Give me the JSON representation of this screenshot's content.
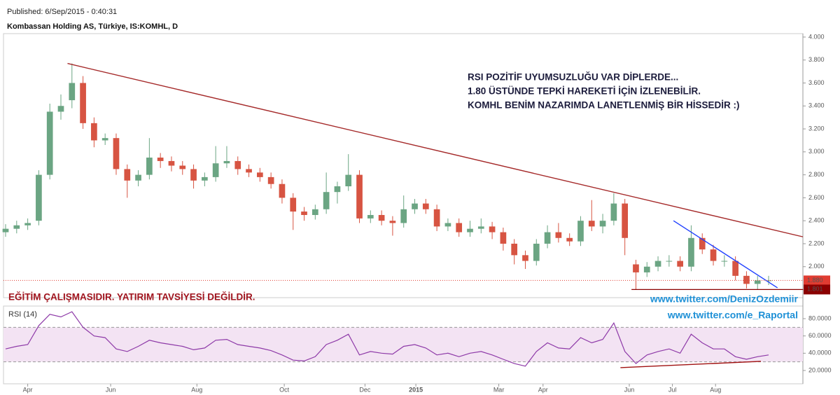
{
  "chart_data": [
    {
      "type": "candlestick",
      "title": "Kombassan Holding AS, Türkiye, IS:KOMHL, D",
      "subtitle": "Published: 6/Sep/2015 - 0:40:31",
      "xlim": [
        -0.19,
        72.1
      ],
      "xticks": [
        {
          "value": 2.0,
          "label": "Apr"
        },
        {
          "value": 9.5,
          "label": "Jun"
        },
        {
          "value": 17.3,
          "label": "Aug"
        },
        {
          "value": 25.2,
          "label": "Oct"
        },
        {
          "value": 32.5,
          "label": "Dec"
        },
        {
          "value": 37.1,
          "label": "2015"
        },
        {
          "value": 44.6,
          "label": "Mar"
        },
        {
          "value": 48.6,
          "label": "Apr"
        },
        {
          "value": 56.4,
          "label": "Jun"
        },
        {
          "value": 60.3,
          "label": "Jul"
        },
        {
          "value": 64.2,
          "label": "Aug"
        }
      ],
      "ylim": [
        1.73,
        4.03
      ],
      "yticks": [
        {
          "value": 1.8,
          "label": "1.800"
        },
        {
          "value": 2.0,
          "label": "2.000"
        },
        {
          "value": 2.2,
          "label": "2.200"
        },
        {
          "value": 2.4,
          "label": "2.400"
        },
        {
          "value": 2.6,
          "label": "2.600"
        },
        {
          "value": 2.8,
          "label": "2.800"
        },
        {
          "value": 3.0,
          "label": "3.000"
        },
        {
          "value": 3.2,
          "label": "3.200"
        },
        {
          "value": 3.4,
          "label": "3.400"
        },
        {
          "value": 3.6,
          "label": "3.600"
        },
        {
          "value": 3.8,
          "label": "3.800"
        },
        {
          "value": 4.0,
          "label": "4.000"
        }
      ],
      "open": [
        2.3,
        2.33,
        2.36,
        2.4,
        2.8,
        3.35,
        3.45,
        3.6,
        3.25,
        3.1,
        3.12,
        2.85,
        2.75,
        2.8,
        2.95,
        2.92,
        2.88,
        2.85,
        2.75,
        2.78,
        2.9,
        2.92,
        2.85,
        2.82,
        2.78,
        2.72,
        2.6,
        2.48,
        2.45,
        2.5,
        2.65,
        2.7,
        2.8,
        2.42,
        2.45,
        2.4,
        2.38,
        2.5,
        2.55,
        2.5,
        2.35,
        2.38,
        2.3,
        2.33,
        2.35,
        2.3,
        2.2,
        2.1,
        2.05,
        2.2,
        2.3,
        2.25,
        2.22,
        2.4,
        2.35,
        2.4,
        2.55,
        2.02,
        1.95,
        2.0,
        2.05,
        2.05,
        2.0,
        2.25,
        2.15,
        2.05,
        2.05,
        1.92,
        1.85,
        1.88
      ],
      "high": [
        2.37,
        2.4,
        2.42,
        2.84,
        3.42,
        3.5,
        3.77,
        3.66,
        3.3,
        3.16,
        3.16,
        2.89,
        2.84,
        3.12,
        2.99,
        2.96,
        2.92,
        2.89,
        2.82,
        3.05,
        3.05,
        2.96,
        2.89,
        2.86,
        2.82,
        2.76,
        2.64,
        2.52,
        2.54,
        2.82,
        2.74,
        2.98,
        2.84,
        2.49,
        2.49,
        2.44,
        2.62,
        2.59,
        2.59,
        2.54,
        2.42,
        2.42,
        2.4,
        2.42,
        2.39,
        2.34,
        2.24,
        2.14,
        2.24,
        2.36,
        2.38,
        2.29,
        2.44,
        2.58,
        2.46,
        2.64,
        2.59,
        2.06,
        2.04,
        2.09,
        2.1,
        2.09,
        2.36,
        2.29,
        2.19,
        2.1,
        2.09,
        1.96,
        1.92,
        1.92
      ],
      "low": [
        2.26,
        2.29,
        2.32,
        2.36,
        2.76,
        3.28,
        3.38,
        3.2,
        3.04,
        3.06,
        2.8,
        2.6,
        2.7,
        2.76,
        2.86,
        2.83,
        2.8,
        2.68,
        2.7,
        2.74,
        2.86,
        2.8,
        2.78,
        2.74,
        2.68,
        2.55,
        2.32,
        2.4,
        2.41,
        2.46,
        2.55,
        2.66,
        2.38,
        2.38,
        2.36,
        2.27,
        2.34,
        2.46,
        2.46,
        2.31,
        2.31,
        2.26,
        2.26,
        2.29,
        2.24,
        2.14,
        2.02,
        1.98,
        2.01,
        2.16,
        2.21,
        2.18,
        2.18,
        2.31,
        2.29,
        2.36,
        2.1,
        1.8,
        1.91,
        1.96,
        2.0,
        1.96,
        1.96,
        2.11,
        2.01,
        2.0,
        1.88,
        1.81,
        1.8,
        1.84
      ],
      "close": [
        2.33,
        2.36,
        2.38,
        2.8,
        3.35,
        3.4,
        3.6,
        3.25,
        3.1,
        3.12,
        2.85,
        2.75,
        2.8,
        2.95,
        2.92,
        2.88,
        2.85,
        2.75,
        2.78,
        2.9,
        2.92,
        2.85,
        2.82,
        2.78,
        2.72,
        2.6,
        2.48,
        2.45,
        2.5,
        2.65,
        2.7,
        2.8,
        2.42,
        2.45,
        2.4,
        2.38,
        2.5,
        2.55,
        2.5,
        2.35,
        2.38,
        2.3,
        2.33,
        2.35,
        2.3,
        2.2,
        2.1,
        2.05,
        2.2,
        2.3,
        2.25,
        2.22,
        2.4,
        2.35,
        2.4,
        2.55,
        2.25,
        1.95,
        2.0,
        2.05,
        2.05,
        2.0,
        2.25,
        2.15,
        2.05,
        2.05,
        1.92,
        1.85,
        1.88,
        1.88
      ],
      "up_color": "#6ba583",
      "down_color": "#d75442",
      "last_price": {
        "value": 1.88,
        "label": "1.880",
        "color": "#e03c31"
      },
      "support": {
        "value": 1.801,
        "label": "1.801",
        "color": "#8b0000",
        "from": 56.6
      },
      "trendlines": [
        {
          "x": [
            5.6,
            72.1
          ],
          "y": [
            3.77,
            2.26
          ],
          "color": "#a52a2a"
        },
        {
          "x": [
            60.4,
            69.8
          ],
          "y": [
            2.4,
            1.816
          ],
          "color": "#2040ff"
        }
      ],
      "annotations": [
        "RSI POZİTİF UYUMSUZLUĞU VAR DİPLERDE...",
        "1.80 ÜSTÜNDE TEPKİ HAREKETİ İÇİN İZLENEBİLİR.",
        "KOMHL BENİM NAZARIMDA LANETLENMİŞ BİR HİSSEDİR :)",
        "EĞİTİM ÇALIŞMASIDIR. YATIRIM TAVSİYESİ DEĞİLDİR.",
        "www.twitter.com/DenizOzdemiir",
        "www.twitter.com/e_Raportal"
      ]
    },
    {
      "type": "line",
      "title": "RSI (14)",
      "xlim": [
        -0.19,
        72.1
      ],
      "ylim": [
        4.6,
        94.6
      ],
      "yticks": [
        {
          "value": 20,
          "label": "20.0000"
        },
        {
          "value": 40,
          "label": "40.0000"
        },
        {
          "value": 60,
          "label": "60.0000"
        },
        {
          "value": 80,
          "label": "80.0000"
        }
      ],
      "band": [
        30,
        70
      ],
      "band_color": "#f3e3f3",
      "color": "#8e3aa8",
      "values": [
        45,
        48,
        50,
        72,
        85,
        82,
        88,
        70,
        60,
        58,
        45,
        42,
        48,
        55,
        52,
        50,
        48,
        44,
        46,
        55,
        56,
        50,
        48,
        46,
        43,
        38,
        32,
        31,
        36,
        50,
        55,
        62,
        38,
        42,
        40,
        39,
        48,
        50,
        46,
        38,
        40,
        36,
        40,
        42,
        38,
        33,
        28,
        25,
        42,
        52,
        46,
        45,
        58,
        52,
        56,
        75,
        42,
        28,
        38,
        42,
        45,
        40,
        62,
        52,
        45,
        45,
        36,
        33,
        36,
        38
      ],
      "trendlines": [
        {
          "x": [
            55.6,
            68.3
          ],
          "y": [
            23.3,
            30.6
          ],
          "color": "#a01010"
        }
      ]
    }
  ]
}
